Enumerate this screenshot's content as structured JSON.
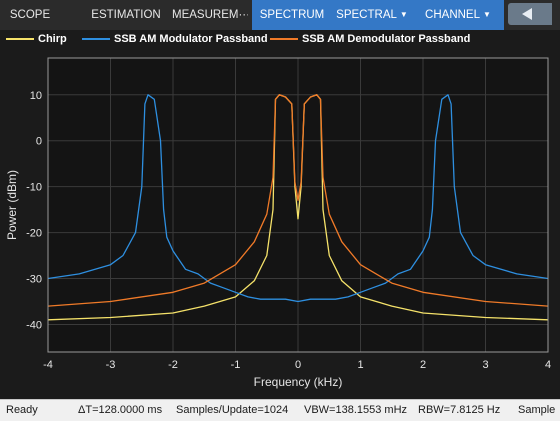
{
  "toolbar": {
    "tabs": [
      {
        "label": "SCOPE",
        "dropdown": false
      },
      {
        "label": "ESTIMATION",
        "dropdown": false
      },
      {
        "label": "MEASUREM···",
        "dropdown": false
      },
      {
        "label": "SPECTRUM",
        "dropdown": false
      },
      {
        "label": "SPECTRAL",
        "dropdown": true
      },
      {
        "label": "CHANNEL",
        "dropdown": true
      }
    ],
    "active_tab": "SPECTRUM"
  },
  "status": {
    "state": "Ready",
    "delta_t": "ΔT=128.0000 ms",
    "samples_update": "Samples/Update=1024",
    "vbw": "VBW=138.1553 mHz",
    "rbw": "RBW=7.8125 Hz",
    "sample": "Sample"
  },
  "colors": {
    "chirp": "#f5e26a",
    "modulator": "#2e8fe0",
    "demodulator": "#f07a28",
    "active_tab": "#3478c6",
    "plot_bg": "#141414"
  },
  "chart_data": {
    "type": "line",
    "xlabel": "Frequency (kHz)",
    "ylabel": "Power (dBm)",
    "xlim": [
      -4,
      4
    ],
    "ylim": [
      -46,
      18
    ],
    "xticks": [
      -4,
      -3,
      -2,
      -1,
      0,
      1,
      2,
      3,
      4
    ],
    "yticks": [
      -40,
      -30,
      -20,
      -10,
      0,
      10
    ],
    "grid": true,
    "legend": "top",
    "series": [
      {
        "name": "Chirp",
        "color": "#f5e26a",
        "x": [
          -4,
          -3,
          -2,
          -1.5,
          -1,
          -0.7,
          -0.5,
          -0.4,
          -0.36,
          -0.3,
          -0.2,
          -0.1,
          -0.05,
          0,
          0.05,
          0.1,
          0.2,
          0.3,
          0.36,
          0.4,
          0.5,
          0.7,
          1,
          1.5,
          2,
          3,
          4
        ],
        "y": [
          -39,
          -38.5,
          -37.5,
          -36,
          -34,
          -30.5,
          -25,
          -15,
          9,
          10,
          9.5,
          8,
          -10,
          -17,
          -10,
          8,
          9.5,
          10,
          9,
          -15,
          -25,
          -30.5,
          -34,
          -36,
          -37.5,
          -38.5,
          -39
        ]
      },
      {
        "name": "SSB AM Modulator Passband",
        "color": "#2e8fe0",
        "x": [
          -4,
          -3.5,
          -3,
          -2.8,
          -2.6,
          -2.5,
          -2.45,
          -2.4,
          -2.3,
          -2.2,
          -2.15,
          -2.1,
          -2.0,
          -1.8,
          -1.6,
          -1.4,
          -1.2,
          -1.0,
          -0.8,
          -0.6,
          -0.4,
          -0.2,
          0,
          0.2,
          0.4,
          0.6,
          0.8,
          1.0,
          1.2,
          1.4,
          1.6,
          1.8,
          2.0,
          2.1,
          2.15,
          2.2,
          2.3,
          2.4,
          2.45,
          2.5,
          2.6,
          2.8,
          3,
          3.5,
          4
        ],
        "y": [
          -30,
          -29,
          -27,
          -25,
          -20,
          -10,
          8,
          10,
          9,
          0,
          -15,
          -21,
          -24,
          -28,
          -29,
          -31,
          -32,
          -33,
          -34,
          -34.5,
          -34.5,
          -34.5,
          -35,
          -34.5,
          -34.5,
          -34.5,
          -34,
          -33,
          -32,
          -31,
          -29,
          -28,
          -24,
          -21,
          -15,
          0,
          9,
          10,
          8,
          -10,
          -20,
          -25,
          -27,
          -29,
          -30
        ]
      },
      {
        "name": "SSB AM Demodulator Passband",
        "color": "#f07a28",
        "x": [
          -4,
          -3,
          -2,
          -1.5,
          -1,
          -0.7,
          -0.5,
          -0.4,
          -0.36,
          -0.3,
          -0.2,
          -0.1,
          -0.05,
          0,
          0.05,
          0.1,
          0.2,
          0.3,
          0.36,
          0.4,
          0.5,
          0.7,
          1,
          1.5,
          2,
          3,
          4
        ],
        "y": [
          -36,
          -35,
          -33,
          -31,
          -27,
          -22,
          -16,
          -8,
          9,
          10,
          9.5,
          8,
          -9,
          -13,
          -9,
          8,
          9.5,
          10,
          9,
          -8,
          -16,
          -22,
          -27,
          -31,
          -33,
          -35,
          -36
        ]
      }
    ]
  }
}
